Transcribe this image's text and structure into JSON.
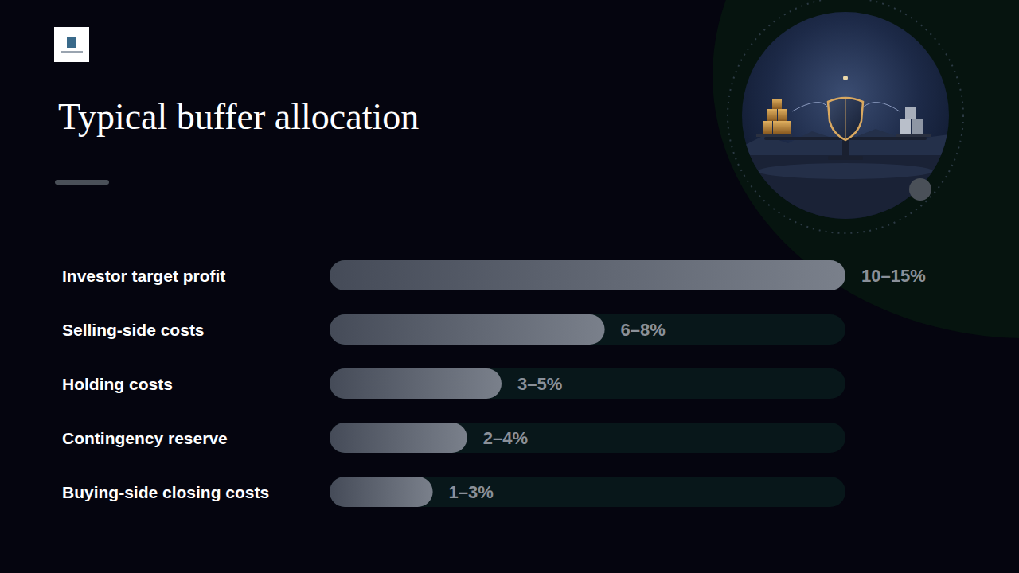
{
  "chart_data": {
    "type": "bar",
    "title": "Typical buffer allocation",
    "orientation": "horizontal",
    "categories": [
      "Investor target profit",
      "Selling-side costs",
      "Holding costs",
      "Contingency reserve",
      "Buying-side closing costs"
    ],
    "values": [
      15,
      8,
      5,
      4,
      3
    ],
    "value_labels": [
      "10–15%",
      "6–8%",
      "3–5%",
      "2–4%",
      "1–3%"
    ],
    "color": "#7a808b",
    "xlim": [
      0,
      15
    ],
    "data_labels": true,
    "tick_labels": "y",
    "grid": false
  }
}
